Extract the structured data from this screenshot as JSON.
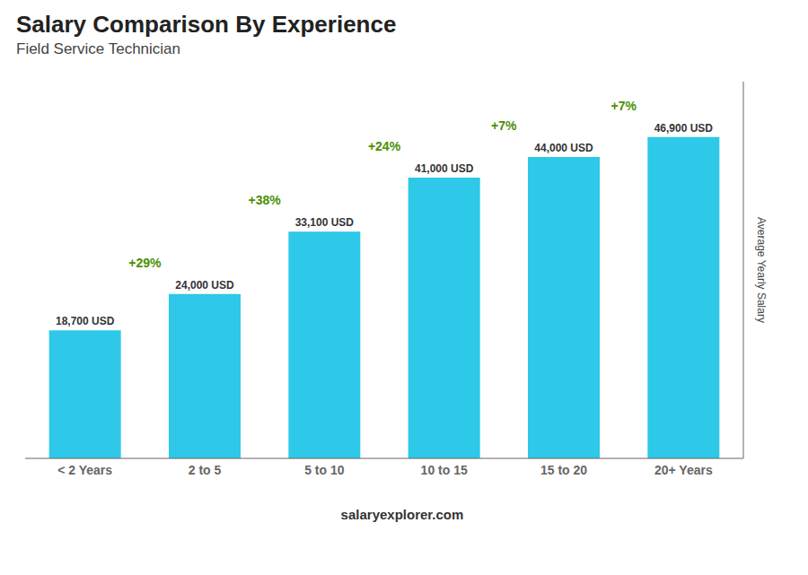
{
  "chart_data": {
    "type": "bar",
    "title": "Salary Comparison By Experience",
    "subtitle": "Field Service Technician",
    "categories": [
      "< 2 Years",
      "2 to 5",
      "5 to 10",
      "10 to 15",
      "15 to 20",
      "20+ Years"
    ],
    "values": [
      18700,
      24000,
      33100,
      41000,
      44000,
      46900
    ],
    "value_labels": [
      "18,700 USD",
      "24,000 USD",
      "33,100 USD",
      "41,000 USD",
      "44,000 USD",
      "46,900 USD"
    ],
    "data_labels": true,
    "annotations": [
      "+29%",
      "+38%",
      "+24%",
      "+7%",
      "+7%"
    ],
    "ylabel": "Average Yearly Salary",
    "ylim": [
      0,
      55000
    ],
    "tick_labels": "x",
    "color": "#2ec8e8",
    "footer": "salaryexplorer.com"
  }
}
